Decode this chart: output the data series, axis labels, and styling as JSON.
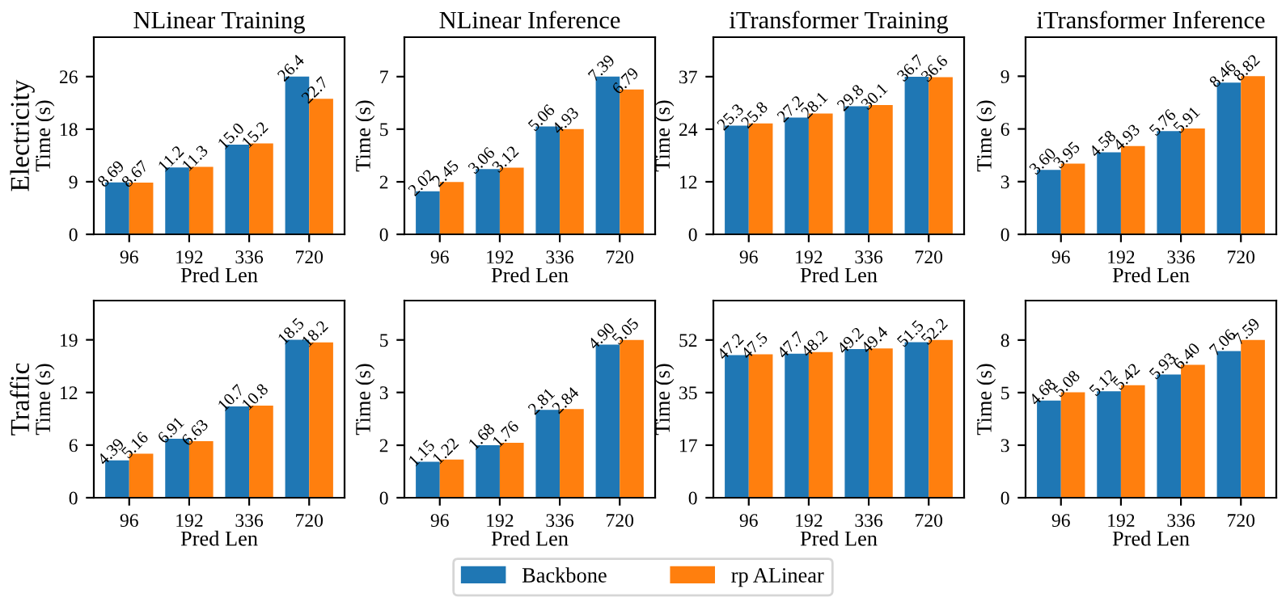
{
  "chart_data": [
    {
      "type": "bar",
      "title": "NLinear Training",
      "xlabel": "Pred Len",
      "ylabel": "Time (s)",
      "legend": "bottom",
      "annotations": [
        "Electricity"
      ],
      "categories": [
        "96",
        "192",
        "336",
        "720"
      ],
      "ylim": [
        0,
        33
      ],
      "yticks": [
        0,
        {
          "value": 8.8,
          "label": "9"
        },
        {
          "value": 17.6,
          "label": "18"
        },
        {
          "value": 26.4,
          "label": "26"
        }
      ],
      "series": [
        {
          "name": "Backbone",
          "color": "#1f77b4",
          "values": [
            8.69,
            11.2,
            15.0,
            26.4
          ],
          "value_labels": [
            "8.69",
            "11.2",
            "15.0",
            "26.4"
          ]
        },
        {
          "name": "rp ALinear",
          "color": "#ff7f0e",
          "values": [
            8.67,
            11.3,
            15.2,
            22.7
          ],
          "value_labels": [
            "8.67",
            "11.3",
            "15.2",
            "22.7"
          ]
        }
      ]
    },
    {
      "type": "bar",
      "title": "NLinear Inference",
      "xlabel": "Pred Len",
      "ylabel": "Time (s)",
      "categories": [
        "96",
        "192",
        "336",
        "720"
      ],
      "ylim": [
        0,
        9.24
      ],
      "yticks": [
        0,
        {
          "value": 2.46,
          "label": "2"
        },
        {
          "value": 4.93,
          "label": "5"
        },
        {
          "value": 7.39,
          "label": "7"
        }
      ],
      "series": [
        {
          "color": "#1f77b4",
          "values": [
            2.02,
            3.06,
            5.06,
            7.39
          ],
          "value_labels": [
            "2.02",
            "3.06",
            "5.06",
            "7.39"
          ]
        },
        {
          "color": "#ff7f0e",
          "values": [
            2.45,
            3.12,
            4.93,
            6.79
          ],
          "value_labels": [
            "2.45",
            "3.12",
            "4.93",
            "6.79"
          ]
        }
      ]
    },
    {
      "type": "bar",
      "title": "iTransformer Training",
      "xlabel": "Pred Len",
      "ylabel": "Time (s)",
      "categories": [
        "96",
        "192",
        "336",
        "720"
      ],
      "ylim": [
        0,
        45.9
      ],
      "yticks": [
        0,
        {
          "value": 12.23,
          "label": "12"
        },
        {
          "value": 24.47,
          "label": "24"
        },
        {
          "value": 36.7,
          "label": "37"
        }
      ],
      "series": [
        {
          "color": "#1f77b4",
          "values": [
            25.3,
            27.2,
            29.8,
            36.7
          ],
          "value_labels": [
            "25.3",
            "27.2",
            "29.8",
            "36.7"
          ]
        },
        {
          "color": "#ff7f0e",
          "values": [
            25.8,
            28.1,
            30.1,
            36.6
          ],
          "value_labels": [
            "25.8",
            "28.1",
            "30.1",
            "36.6"
          ]
        }
      ]
    },
    {
      "type": "bar",
      "title": "iTransformer Inference",
      "xlabel": "Pred Len",
      "ylabel": "Time (s)",
      "categories": [
        "96",
        "192",
        "336",
        "720"
      ],
      "ylim": [
        0,
        11.0
      ],
      "yticks": [
        0,
        {
          "value": 2.94,
          "label": "3"
        },
        {
          "value": 5.88,
          "label": "6"
        },
        {
          "value": 8.82,
          "label": "9"
        }
      ],
      "series": [
        {
          "color": "#1f77b4",
          "values": [
            3.6,
            4.58,
            5.76,
            8.46
          ],
          "value_labels": [
            "3.60",
            "4.58",
            "5.76",
            "8.46"
          ]
        },
        {
          "color": "#ff7f0e",
          "values": [
            3.95,
            4.93,
            5.91,
            8.82
          ],
          "value_labels": [
            "3.95",
            "4.93",
            "5.91",
            "8.82"
          ]
        }
      ]
    },
    {
      "type": "bar",
      "xlabel": "Pred Len",
      "ylabel": "Time (s)",
      "annotations": [
        "Traffic"
      ],
      "categories": [
        "96",
        "192",
        "336",
        "720"
      ],
      "ylim": [
        0,
        23.1
      ],
      "yticks": [
        0,
        {
          "value": 6.17,
          "label": "6"
        },
        {
          "value": 12.33,
          "label": "12"
        },
        {
          "value": 18.5,
          "label": "19"
        }
      ],
      "series": [
        {
          "color": "#1f77b4",
          "values": [
            4.39,
            6.91,
            10.7,
            18.5
          ],
          "value_labels": [
            "4.39",
            "6.91",
            "10.7",
            "18.5"
          ]
        },
        {
          "color": "#ff7f0e",
          "values": [
            5.16,
            6.63,
            10.8,
            18.2
          ],
          "value_labels": [
            "5.16",
            "6.63",
            "10.8",
            "18.2"
          ]
        }
      ]
    },
    {
      "type": "bar",
      "xlabel": "Pred Len",
      "ylabel": "Time (s)",
      "categories": [
        "96",
        "192",
        "336",
        "720"
      ],
      "ylim": [
        0,
        6.31
      ],
      "yticks": [
        0,
        {
          "value": 1.68,
          "label": "2"
        },
        {
          "value": 3.37,
          "label": "3"
        },
        {
          "value": 5.05,
          "label": "5"
        }
      ],
      "series": [
        {
          "color": "#1f77b4",
          "values": [
            1.15,
            1.68,
            2.81,
            4.9
          ],
          "value_labels": [
            "1.15",
            "1.68",
            "2.81",
            "4.90"
          ]
        },
        {
          "color": "#ff7f0e",
          "values": [
            1.22,
            1.76,
            2.84,
            5.05
          ],
          "value_labels": [
            "1.22",
            "1.76",
            "2.84",
            "5.05"
          ]
        }
      ]
    },
    {
      "type": "bar",
      "xlabel": "Pred Len",
      "ylabel": "Time (s)",
      "categories": [
        "96",
        "192",
        "336",
        "720"
      ],
      "ylim": [
        0,
        65.25
      ],
      "yticks": [
        0,
        {
          "value": 17.4,
          "label": "17"
        },
        {
          "value": 34.8,
          "label": "35"
        },
        {
          "value": 52.2,
          "label": "52"
        }
      ],
      "series": [
        {
          "color": "#1f77b4",
          "values": [
            47.2,
            47.7,
            49.2,
            51.5
          ],
          "value_labels": [
            "47.2",
            "47.7",
            "49.2",
            "51.5"
          ]
        },
        {
          "color": "#ff7f0e",
          "values": [
            47.5,
            48.2,
            49.4,
            52.2
          ],
          "value_labels": [
            "47.5",
            "48.2",
            "49.4",
            "52.2"
          ]
        }
      ]
    },
    {
      "type": "bar",
      "xlabel": "Pred Len",
      "ylabel": "Time (s)",
      "categories": [
        "96",
        "192",
        "336",
        "720"
      ],
      "ylim": [
        0,
        9.49
      ],
      "yticks": [
        0,
        {
          "value": 2.53,
          "label": "3"
        },
        {
          "value": 5.06,
          "label": "5"
        },
        {
          "value": 7.59,
          "label": "8"
        }
      ],
      "series": [
        {
          "color": "#1f77b4",
          "values": [
            4.68,
            5.12,
            5.93,
            7.06
          ],
          "value_labels": [
            "4.68",
            "5.12",
            "5.93",
            "7.06"
          ]
        },
        {
          "color": "#ff7f0e",
          "values": [
            5.08,
            5.42,
            6.4,
            7.59
          ],
          "value_labels": [
            "5.08",
            "5.42",
            "6.40",
            "7.59"
          ]
        }
      ]
    }
  ]
}
